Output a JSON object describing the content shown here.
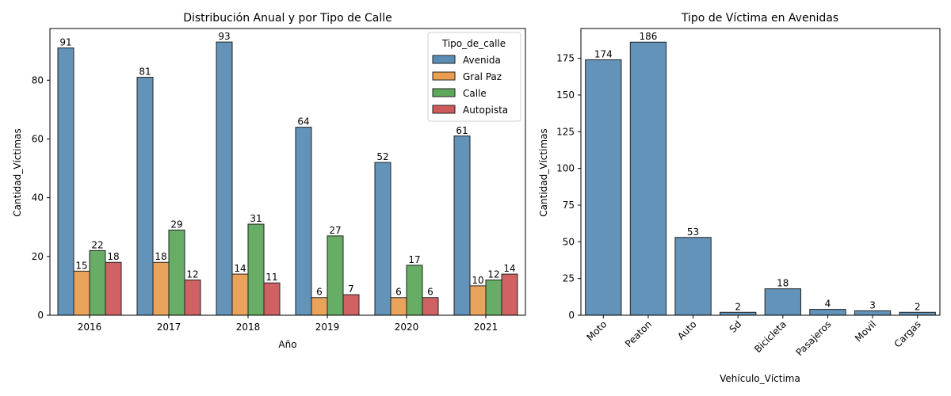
{
  "chart_data": [
    {
      "type": "bar",
      "title": "Distribución Anual y por Tipo de Calle",
      "xlabel": "Año",
      "ylabel": "Cantidad_Víctimas",
      "categories": [
        "2016",
        "2017",
        "2018",
        "2019",
        "2020",
        "2021"
      ],
      "ylim": [
        0,
        97.6
      ],
      "yticks": [
        0,
        20,
        40,
        60,
        80
      ],
      "legend": {
        "title": "Tipo_de_calle",
        "placement": "top-right"
      },
      "series": [
        {
          "name": "Avenida",
          "color": "#5b8db4",
          "values": [
            91,
            81,
            93,
            64,
            52,
            61
          ]
        },
        {
          "name": "Gral Paz",
          "color": "#e99e52",
          "values": [
            15,
            18,
            14,
            6,
            6,
            10
          ]
        },
        {
          "name": "Calle",
          "color": "#5fa95d",
          "values": [
            22,
            29,
            31,
            27,
            17,
            12
          ]
        },
        {
          "name": "Autopista",
          "color": "#cf5a5c",
          "values": [
            18,
            12,
            11,
            7,
            6,
            14
          ]
        }
      ]
    },
    {
      "type": "bar",
      "title": "Tipo de Víctima en Avenidas",
      "xlabel": "Vehículo_Víctima",
      "ylabel": "Cantidad_Víctimas",
      "categories": [
        "Moto",
        "Peaton",
        "Auto",
        "Sd",
        "Bicicleta",
        "Pasajeros",
        "Movil",
        "Cargas"
      ],
      "values": [
        174,
        186,
        53,
        2,
        18,
        4,
        3,
        2
      ],
      "color": "#5b8db4",
      "ylim": [
        0,
        195.3
      ],
      "yticks": [
        0,
        25,
        50,
        75,
        100,
        125,
        150,
        175
      ]
    }
  ]
}
